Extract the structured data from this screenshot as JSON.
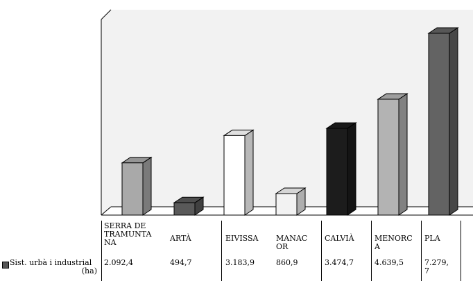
{
  "chart_data": {
    "type": "bar",
    "categories": [
      "SERRA DE\nTRAMUNTA\nNA",
      "ARTÀ",
      "EIVISSA",
      "MANAC\nOR",
      "CALVIÀ",
      "MENORC\nA",
      "PLA"
    ],
    "series": [
      {
        "name": "Sist. urbà i industrial (ha)",
        "values": [
          2092.4,
          494.7,
          3183.9,
          860.9,
          3474.7,
          4639.5,
          7279.7
        ],
        "labels": [
          "2.092,4",
          "494,7",
          "3.183,9",
          "860,9",
          "3.474,7",
          "4.639,5",
          "7.279,\n7"
        ]
      }
    ],
    "legend": {
      "name_line": "Sist. urbà i industrial",
      "unit_line": "(ha)"
    },
    "colors": [
      "#a9a9a9",
      "#595959",
      "#ffffff",
      "#f2f2f2",
      "#1c1c1c",
      "#b3b3b3",
      "#636363"
    ],
    "ylim": [
      0,
      7800
    ],
    "grid": false,
    "legend_placement": "table-left"
  }
}
